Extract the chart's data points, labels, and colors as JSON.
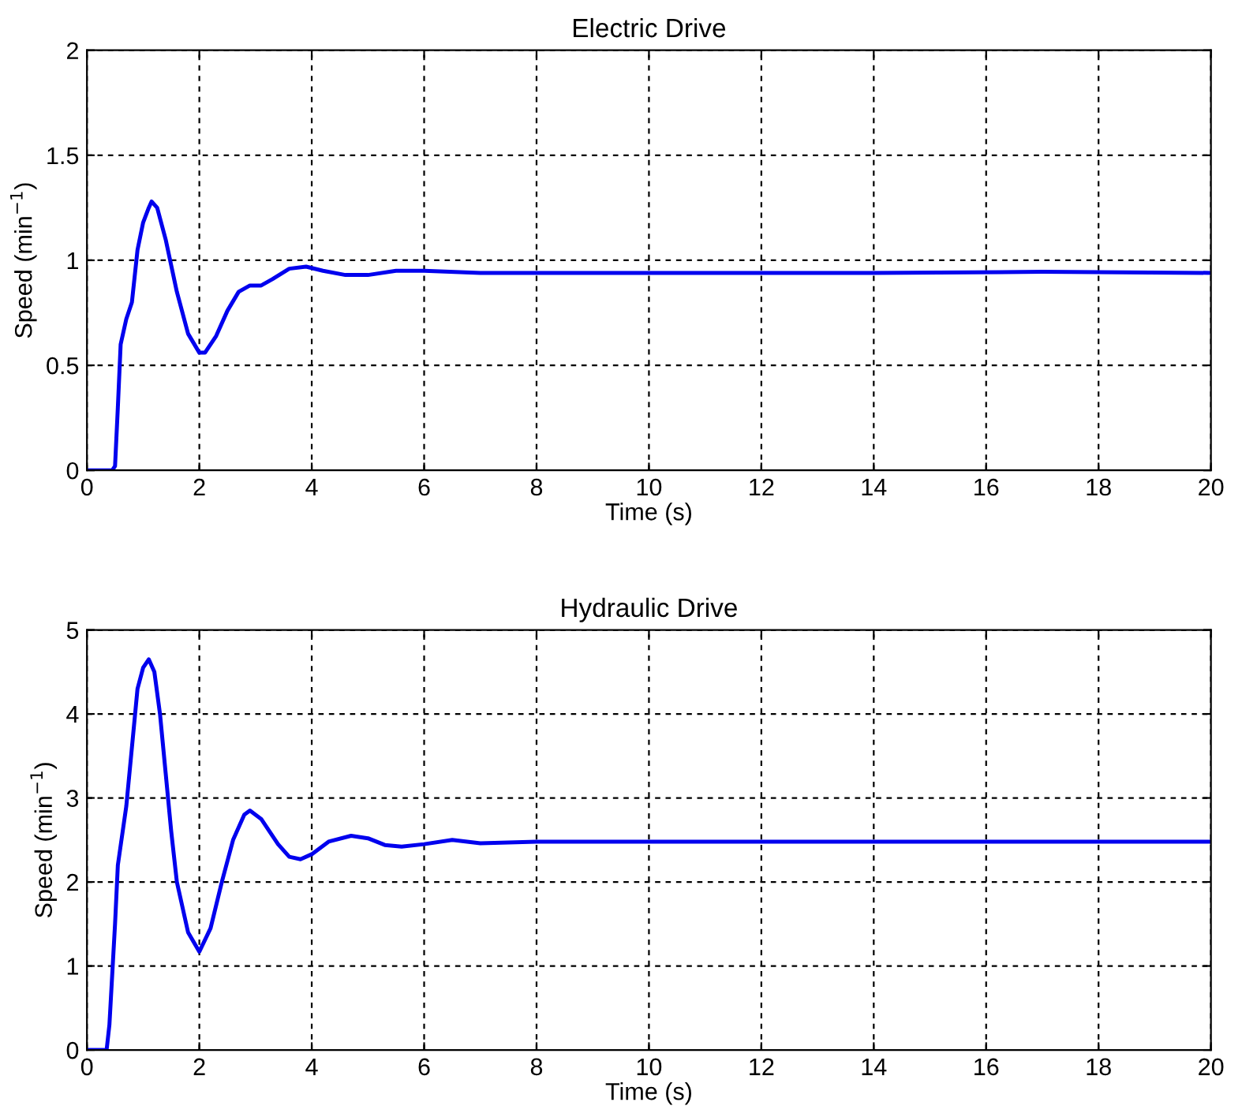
{
  "chart_data": [
    {
      "type": "line",
      "title": "Electric Drive",
      "xlabel": "Time (s)",
      "ylabel": "Speed (min$^{−1}$)",
      "xlim": [
        0,
        20
      ],
      "ylim": [
        0,
        2
      ],
      "xticks": [
        0,
        2,
        4,
        6,
        8,
        10,
        12,
        14,
        16,
        18,
        20
      ],
      "yticks": [
        0,
        0.5,
        1,
        1.5,
        2
      ],
      "grid": true,
      "marker": "none",
      "line_style": "solid",
      "series": [
        {
          "color": "#0000ee",
          "x": [
            0,
            0.45,
            0.5,
            0.55,
            0.6,
            0.7,
            0.8,
            0.9,
            1.0,
            1.1,
            1.15,
            1.25,
            1.4,
            1.6,
            1.8,
            2.0,
            2.1,
            2.3,
            2.5,
            2.7,
            2.9,
            3.1,
            3.3,
            3.6,
            3.9,
            4.2,
            4.6,
            5.0,
            5.5,
            6.0,
            7,
            10,
            14,
            17,
            20
          ],
          "values": [
            0,
            0,
            0.02,
            0.3,
            0.6,
            0.72,
            0.8,
            1.05,
            1.18,
            1.25,
            1.28,
            1.25,
            1.1,
            0.85,
            0.65,
            0.56,
            0.56,
            0.64,
            0.76,
            0.85,
            0.88,
            0.88,
            0.91,
            0.96,
            0.97,
            0.95,
            0.93,
            0.93,
            0.95,
            0.95,
            0.94,
            0.94,
            0.94,
            0.945,
            0.94
          ]
        }
      ]
    },
    {
      "type": "line",
      "title": "Hydraulic Drive",
      "xlabel": "Time (s)",
      "ylabel": "Speed (min$^{−1}$)",
      "xlim": [
        0,
        20
      ],
      "ylim": [
        0,
        5
      ],
      "xticks": [
        0,
        2,
        4,
        6,
        8,
        10,
        12,
        14,
        16,
        18,
        20
      ],
      "yticks": [
        0,
        1,
        2,
        3,
        4,
        5
      ],
      "grid": true,
      "marker": "none",
      "line_style": "solid",
      "series": [
        {
          "color": "#0000ee",
          "x": [
            0,
            0.35,
            0.4,
            0.5,
            0.55,
            0.7,
            0.8,
            0.9,
            1.0,
            1.1,
            1.2,
            1.3,
            1.4,
            1.5,
            1.6,
            1.8,
            2.0,
            2.2,
            2.4,
            2.6,
            2.8,
            2.9,
            3.1,
            3.4,
            3.6,
            3.8,
            4.0,
            4.3,
            4.7,
            5.0,
            5.3,
            5.6,
            6,
            6.5,
            7,
            8,
            10,
            14,
            20
          ],
          "values": [
            0,
            0,
            0.3,
            1.5,
            2.2,
            2.9,
            3.6,
            4.3,
            4.55,
            4.65,
            4.5,
            4.0,
            3.3,
            2.6,
            2.0,
            1.4,
            1.17,
            1.45,
            2.0,
            2.5,
            2.8,
            2.85,
            2.75,
            2.45,
            2.3,
            2.27,
            2.33,
            2.48,
            2.55,
            2.52,
            2.44,
            2.42,
            2.45,
            2.5,
            2.46,
            2.48,
            2.48,
            2.48,
            2.48
          ]
        }
      ]
    }
  ]
}
